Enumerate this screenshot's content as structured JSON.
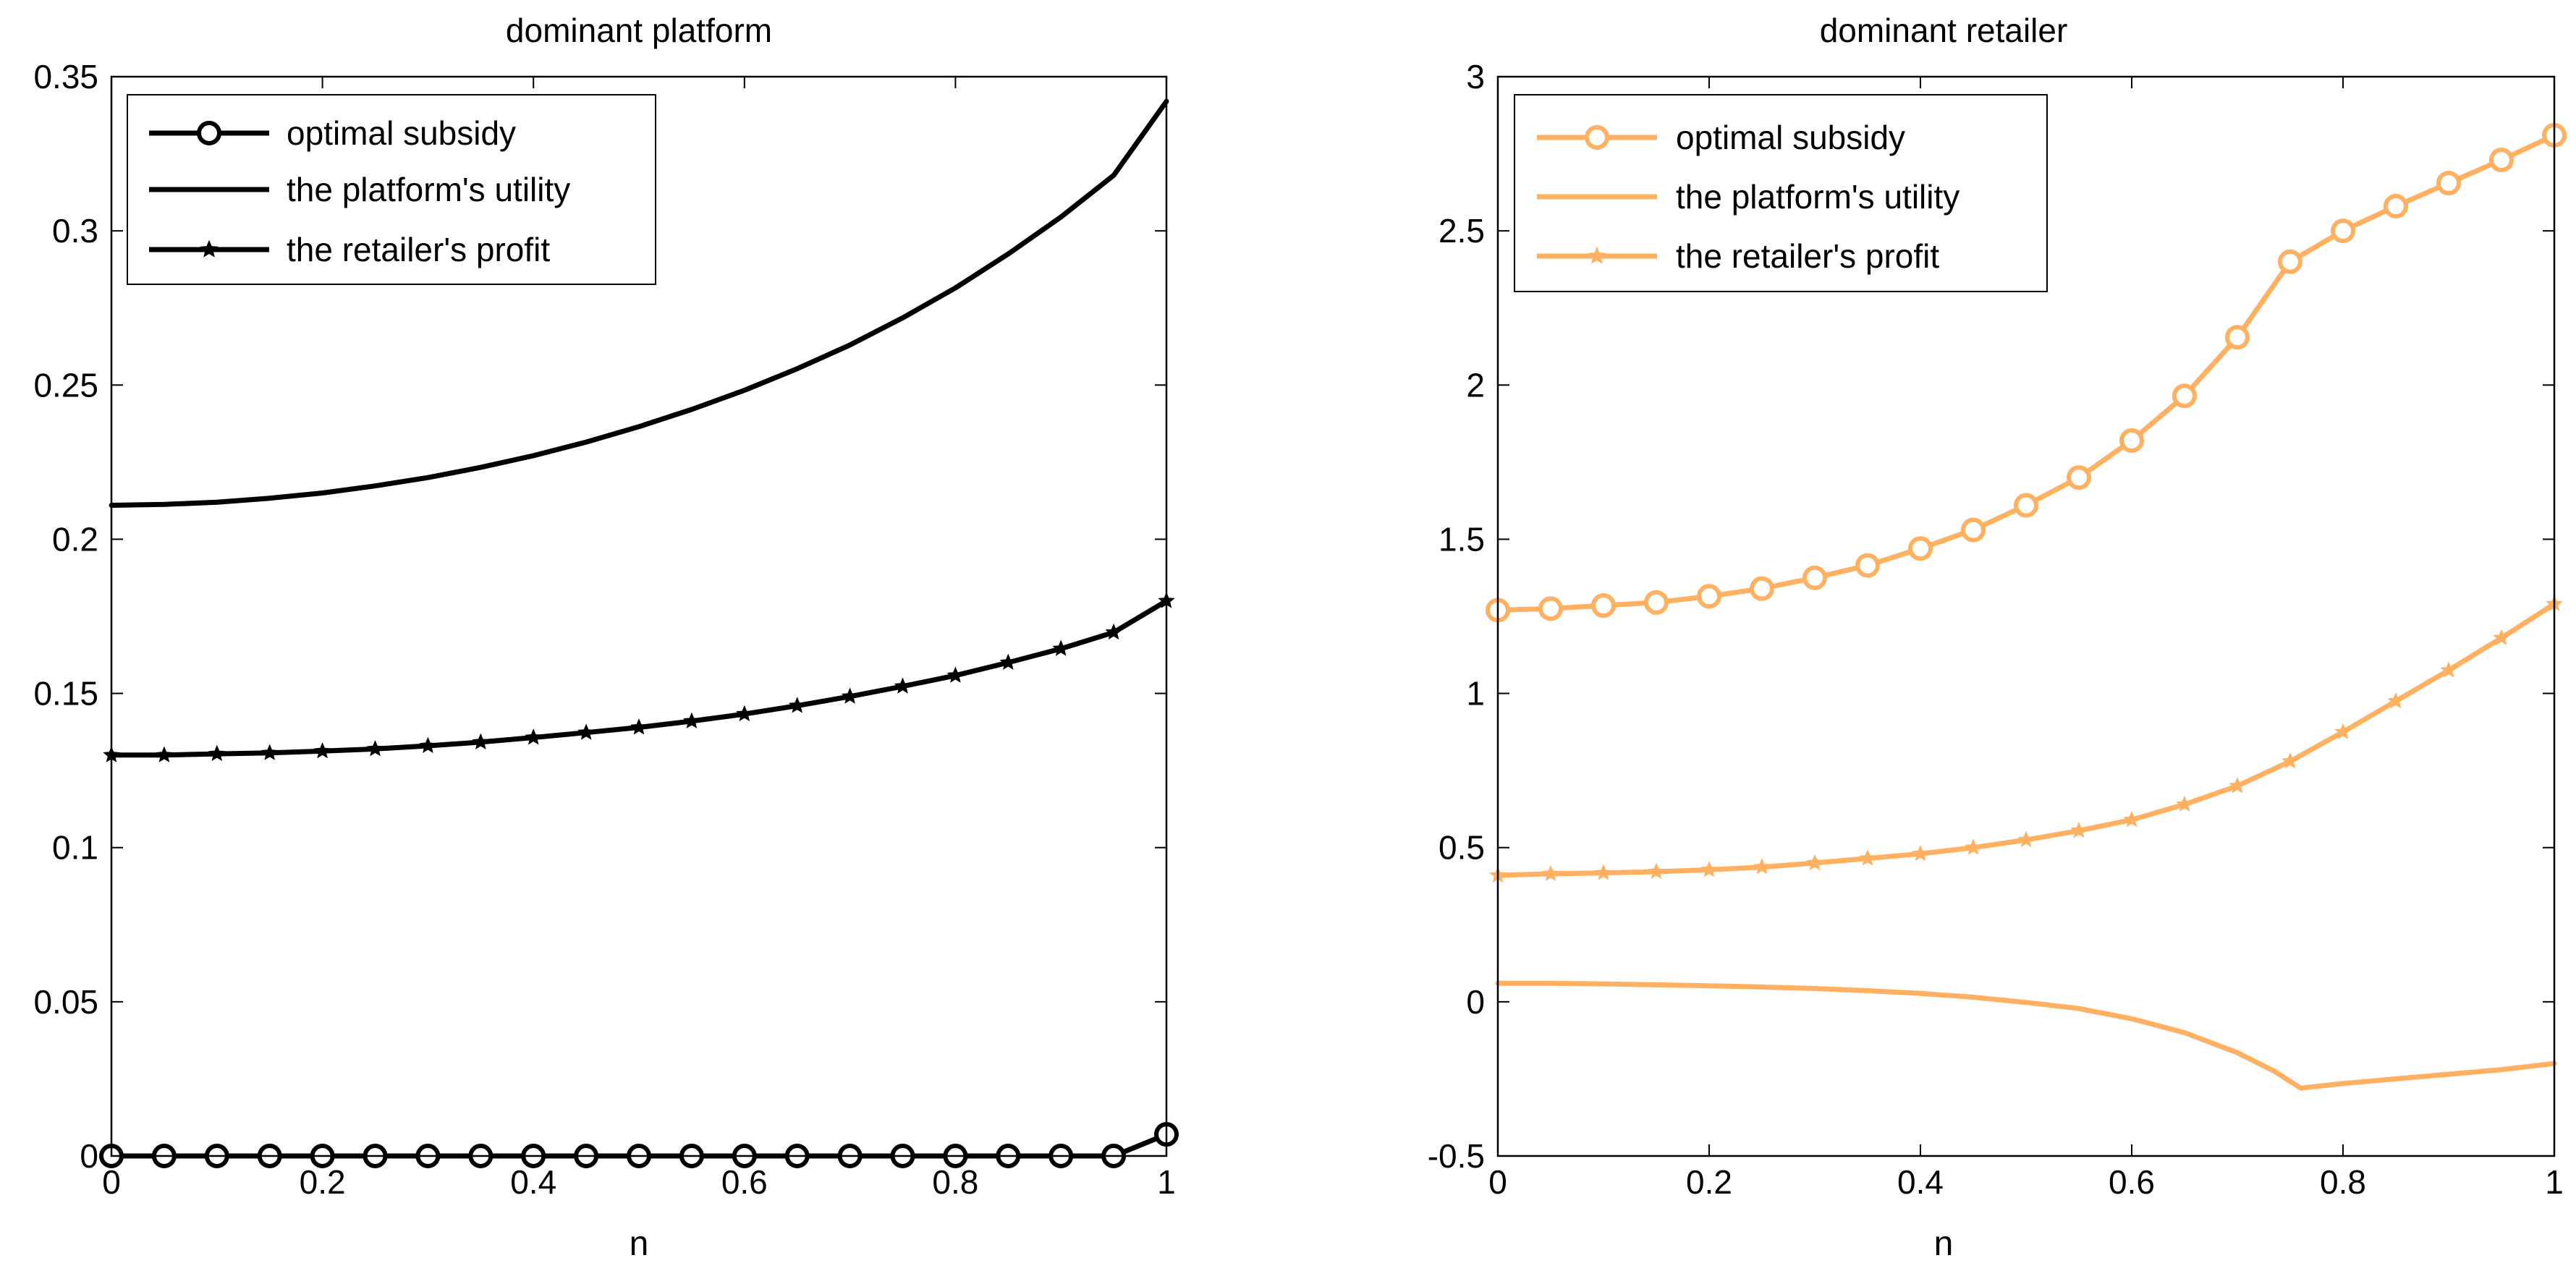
{
  "chart_data": [
    {
      "type": "line",
      "title": "dominant platform",
      "xlabel": "n",
      "ylabel": "",
      "xlim": [
        0,
        1
      ],
      "ylim": [
        0,
        0.35
      ],
      "xticks": [
        0,
        0.2,
        0.4,
        0.6,
        0.8,
        1
      ],
      "xtick_labels": [
        "0",
        "0.2",
        "0.4",
        "0.6",
        "0.8",
        "1"
      ],
      "yticks": [
        0,
        0.05,
        0.1,
        0.15,
        0.2,
        0.25,
        0.3,
        0.35
      ],
      "ytick_labels": [
        "0",
        "0.05",
        "0.1",
        "0.15",
        "0.2",
        "0.25",
        "0.3",
        "0.35"
      ],
      "grid": false,
      "legend_position": "top-left",
      "color": "#000000",
      "x": [
        0,
        0.05,
        0.1,
        0.15,
        0.2,
        0.25,
        0.3,
        0.35,
        0.4,
        0.45,
        0.5,
        0.55,
        0.6,
        0.65,
        0.7,
        0.75,
        0.8,
        0.85,
        0.9,
        0.95,
        1
      ],
      "series": [
        {
          "name": "optimal subsidy",
          "marker": "circle",
          "values": [
            0,
            0,
            0,
            0,
            0,
            0,
            0,
            0,
            0,
            0,
            0,
            0,
            0,
            0,
            0,
            0,
            0,
            0,
            0,
            0,
            0.007
          ]
        },
        {
          "name": "the platform's utility",
          "marker": "none",
          "values": [
            0.211,
            0.2113,
            0.212,
            0.2133,
            0.215,
            0.2173,
            0.22,
            0.2233,
            0.2271,
            0.2315,
            0.2365,
            0.2421,
            0.2483,
            0.2553,
            0.263,
            0.2718,
            0.2815,
            0.2925,
            0.3045,
            0.318,
            0.342
          ]
        },
        {
          "name": "the retailer's profit",
          "marker": "star",
          "values": [
            0.13,
            0.13,
            0.1304,
            0.1307,
            0.1313,
            0.132,
            0.133,
            0.1342,
            0.1357,
            0.1373,
            0.139,
            0.141,
            0.1433,
            0.146,
            0.149,
            0.1523,
            0.1558,
            0.16,
            0.1645,
            0.1698,
            0.18
          ]
        }
      ]
    },
    {
      "type": "line",
      "title": "dominant retailer",
      "xlabel": "n",
      "ylabel": "",
      "xlim": [
        0,
        1
      ],
      "ylim": [
        -0.5,
        3
      ],
      "xticks": [
        0,
        0.2,
        0.4,
        0.6,
        0.8,
        1
      ],
      "xtick_labels": [
        "0",
        "0.2",
        "0.4",
        "0.6",
        "0.8",
        "1"
      ],
      "yticks": [
        -0.5,
        0,
        0.5,
        1,
        1.5,
        2,
        2.5,
        3
      ],
      "ytick_labels": [
        "-0.5",
        "0",
        "0.5",
        "1",
        "1.5",
        "2",
        "2.5",
        "3"
      ],
      "grid": false,
      "legend_position": "top-left",
      "color": "#FFB060",
      "x": [
        0,
        0.05,
        0.1,
        0.15,
        0.2,
        0.25,
        0.3,
        0.35,
        0.4,
        0.45,
        0.5,
        0.55,
        0.6,
        0.65,
        0.7,
        0.75,
        0.8,
        0.85,
        0.9,
        0.95,
        1
      ],
      "series": [
        {
          "name": "optimal subsidy",
          "marker": "circle",
          "values": [
            1.27,
            1.275,
            1.285,
            1.295,
            1.315,
            1.34,
            1.375,
            1.415,
            1.47,
            1.53,
            1.61,
            1.7,
            1.82,
            1.965,
            2.155,
            2.4,
            2.5,
            2.58,
            2.655,
            2.73,
            2.81
          ]
        },
        {
          "name": "the platform's utility",
          "marker": "none",
          "x": [
            0,
            0.05,
            0.1,
            0.15,
            0.2,
            0.25,
            0.3,
            0.35,
            0.4,
            0.45,
            0.5,
            0.55,
            0.6,
            0.65,
            0.7,
            0.735,
            0.76,
            0.8,
            0.85,
            0.9,
            0.95,
            1
          ],
          "values": [
            0.06,
            0.06,
            0.058,
            0.055,
            0.052,
            0.048,
            0.043,
            0.036,
            0.027,
            0.015,
            -0.002,
            -0.022,
            -0.055,
            -0.1,
            -0.165,
            -0.225,
            -0.28,
            -0.265,
            -0.25,
            -0.235,
            -0.22,
            -0.2
          ]
        },
        {
          "name": "the retailer's profit",
          "marker": "star",
          "values": [
            0.41,
            0.415,
            0.418,
            0.422,
            0.428,
            0.437,
            0.45,
            0.465,
            0.48,
            0.5,
            0.525,
            0.555,
            0.59,
            0.64,
            0.7,
            0.78,
            0.875,
            0.975,
            1.075,
            1.18,
            1.29
          ]
        }
      ]
    }
  ]
}
